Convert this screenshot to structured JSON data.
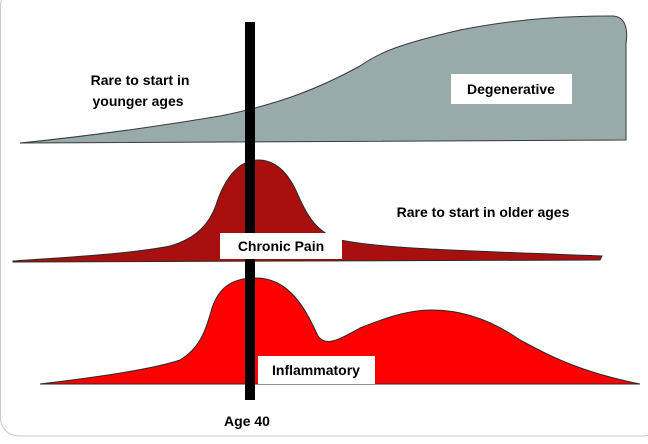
{
  "labels": {
    "young_note_line1": "Rare to start in",
    "young_note_line2": "younger ages",
    "degenerative": "Degenerative",
    "old_note": "Rare to start in older ages",
    "chronic_pain": "Chronic Pain",
    "inflammatory": "Inflammatory",
    "age_marker": "Age 40"
  },
  "colors": {
    "degenerative": "#98aaaa",
    "chronic_pain": "#a81010",
    "inflammatory": "#fe0000",
    "marker": "#000000"
  }
}
